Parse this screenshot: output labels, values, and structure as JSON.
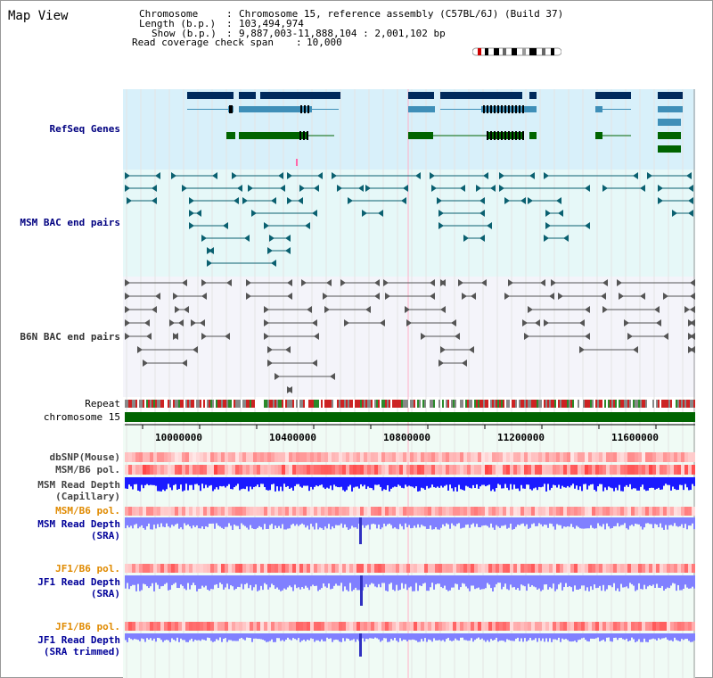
{
  "header": {
    "title": "Map View",
    "chromosome_label": "Chromosome",
    "chromosome_value": "Chromosome 15, reference assembly (C57BL/6J) (Build 37)",
    "length_label": "Length (b.p.)",
    "length_value": "103,494,974",
    "show_label": "Show (b.p.)",
    "show_value": "9,887,003-11,888,104 : 2,001,102 bp",
    "coverage_label": "Read coverage check span",
    "coverage_value": "10,000"
  },
  "tracks": {
    "refseq": "RefSeq Genes",
    "msm_bac": "MSM BAC end pairs",
    "b6n_bac": "B6N BAC end pairs",
    "repeat": "Repeat",
    "chromosome": "chromosome 15",
    "dbsnp": "dbSNP(Mouse)",
    "msm_pol": "MSM/B6 pol.",
    "msm_depth_cap_1": "MSM Read Depth",
    "msm_depth_cap_2": "(Capillary)",
    "msm_pol_2": "MSM/B6 pol.",
    "msm_depth_sra_1": "MSM Read Depth",
    "msm_depth_sra_2": "(SRA)",
    "jf1_pol": "JF1/B6 pol.",
    "jf1_depth_1": "JF1 Read Depth",
    "jf1_depth_2": "(SRA)",
    "jf1_pol_2": "JF1/B6 pol.",
    "jf1_trim_1": "JF1 Read Depth",
    "jf1_trim_2": "(SRA trimmed)"
  },
  "axis": {
    "ticks": [
      "10000000",
      "10400000",
      "10800000",
      "11200000",
      "11600000"
    ]
  },
  "colors": {
    "refseq_bg": "#d8f0fa",
    "bac_bg": "#e6f7f8",
    "gene_dark": "#002a5c",
    "gene_mid": "#3f8fb8",
    "gene_green": "#006400",
    "chrom_green": "#006400",
    "depth_blue": "#1a1aff",
    "depth_light": "#8080ff",
    "pol_red": "#ff3333"
  }
}
